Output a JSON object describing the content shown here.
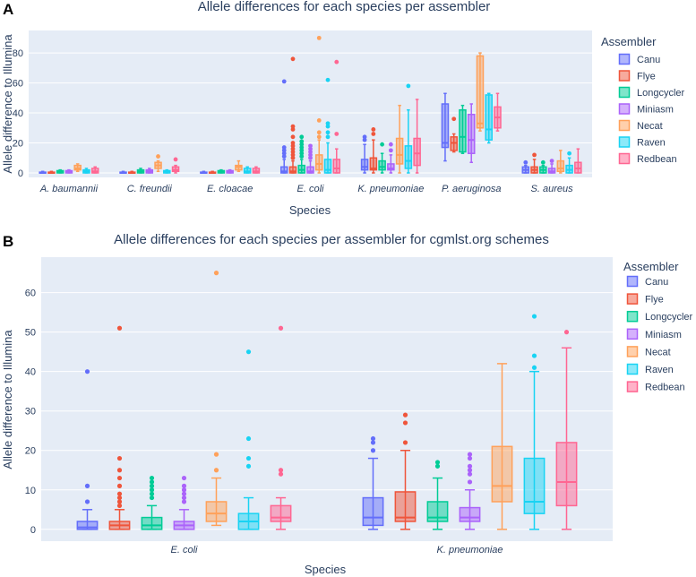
{
  "colors": {
    "Canu": "#636efa",
    "Flye": "#ef553b",
    "Longcycler": "#00cc96",
    "Miniasm": "#ab63fa",
    "Necat": "#ffa15a",
    "Raven": "#19d3f3",
    "Redbean": "#ff6692"
  },
  "chart_data": [
    {
      "panel_label": "A",
      "type": "box",
      "title": "Allele differences for each species per assembler",
      "xlabel": "Species",
      "ylabel": "Allele difference to Illumina",
      "ylim": [
        -3,
        95
      ],
      "yticks": [
        0,
        20,
        40,
        60,
        80
      ],
      "legend_title": "Assembler",
      "legend_position": "right",
      "series_names": [
        "Canu",
        "Flye",
        "Longcycler",
        "Miniasm",
        "Necat",
        "Raven",
        "Redbean"
      ],
      "categories": [
        "A. baumannii",
        "C. freundii",
        "E. cloacae",
        "E. coli",
        "K. pneumoniae",
        "P. aeruginosa",
        "S. aureus"
      ],
      "boxes": [
        [
          {
            "q1": 0,
            "median": 0,
            "q3": 0.5,
            "lo": 0,
            "hi": 1,
            "outliers": []
          },
          {
            "q1": 0,
            "median": 0,
            "q3": 0.5,
            "lo": 0,
            "hi": 1,
            "outliers": []
          },
          {
            "q1": 0,
            "median": 1,
            "q3": 1.5,
            "lo": 0,
            "hi": 2,
            "outliers": []
          },
          {
            "q1": 0,
            "median": 1,
            "q3": 1.5,
            "lo": 0,
            "hi": 2,
            "outliers": []
          },
          {
            "q1": 2,
            "median": 3,
            "q3": 5,
            "lo": 1,
            "hi": 6,
            "outliers": []
          },
          {
            "q1": 0,
            "median": 1,
            "q3": 2,
            "lo": 0,
            "hi": 3,
            "outliers": []
          },
          {
            "q1": 0,
            "median": 1,
            "q3": 3,
            "lo": 0,
            "hi": 4,
            "outliers": []
          }
        ],
        [
          {
            "q1": 0,
            "median": 0,
            "q3": 0.5,
            "lo": 0,
            "hi": 1,
            "outliers": []
          },
          {
            "q1": 0,
            "median": 0,
            "q3": 0.5,
            "lo": 0,
            "hi": 1,
            "outliers": []
          },
          {
            "q1": 0,
            "median": 1,
            "q3": 2,
            "lo": 0,
            "hi": 3,
            "outliers": []
          },
          {
            "q1": 0,
            "median": 1,
            "q3": 2,
            "lo": 0,
            "hi": 3,
            "outliers": []
          },
          {
            "q1": 3,
            "median": 5,
            "q3": 7,
            "lo": 1,
            "hi": 8,
            "outliers": [
              11
            ]
          },
          {
            "q1": 0,
            "median": 1,
            "q3": 1.5,
            "lo": 0,
            "hi": 2,
            "outliers": []
          },
          {
            "q1": 1,
            "median": 2,
            "q3": 4,
            "lo": 0,
            "hi": 5,
            "outliers": [
              9
            ]
          }
        ],
        [
          {
            "q1": 0,
            "median": 0,
            "q3": 0.5,
            "lo": 0,
            "hi": 1,
            "outliers": []
          },
          {
            "q1": 0,
            "median": 0,
            "q3": 0.5,
            "lo": 0,
            "hi": 1,
            "outliers": []
          },
          {
            "q1": 0,
            "median": 1,
            "q3": 1.5,
            "lo": 0,
            "hi": 2,
            "outliers": []
          },
          {
            "q1": 0,
            "median": 1,
            "q3": 1.5,
            "lo": 0,
            "hi": 2,
            "outliers": []
          },
          {
            "q1": 2,
            "median": 4,
            "q3": 5,
            "lo": 1,
            "hi": 8,
            "outliers": []
          },
          {
            "q1": 0,
            "median": 1,
            "q3": 3,
            "lo": 0,
            "hi": 4,
            "outliers": []
          },
          {
            "q1": 0,
            "median": 1,
            "q3": 3,
            "lo": 0,
            "hi": 4,
            "outliers": []
          }
        ],
        [
          {
            "q1": 0,
            "median": 1,
            "q3": 4,
            "lo": 0,
            "hi": 9,
            "outliers": [
              11,
              13,
              15,
              17,
              61
            ]
          },
          {
            "q1": 0,
            "median": 1,
            "q3": 4,
            "lo": 0,
            "hi": 8,
            "outliers": [
              10,
              12,
              14,
              16,
              18,
              20,
              24,
              29,
              31,
              76
            ]
          },
          {
            "q1": 0,
            "median": 2,
            "q3": 5,
            "lo": 0,
            "hi": 9,
            "outliers": [
              11,
              13,
              15,
              17,
              19,
              21,
              24
            ]
          },
          {
            "q1": 0,
            "median": 1,
            "q3": 4,
            "lo": 0,
            "hi": 8,
            "outliers": [
              10,
              12,
              14,
              16,
              18
            ]
          },
          {
            "q1": 2,
            "median": 6,
            "q3": 12,
            "lo": 0,
            "hi": 22,
            "outliers": [
              24,
              27,
              35,
              90
            ]
          },
          {
            "q1": 0,
            "median": 2,
            "q3": 9,
            "lo": 0,
            "hi": 20,
            "outliers": [
              24,
              27,
              31,
              33,
              62
            ]
          },
          {
            "q1": 0,
            "median": 3,
            "q3": 9,
            "lo": 0,
            "hi": 16,
            "outliers": [
              26,
              74
            ]
          }
        ],
        [
          {
            "q1": 2,
            "median": 4,
            "q3": 9,
            "lo": 0,
            "hi": 19,
            "outliers": [
              22,
              24
            ]
          },
          {
            "q1": 2,
            "median": 3,
            "q3": 10,
            "lo": 0,
            "hi": 22,
            "outliers": [
              26,
              29
            ]
          },
          {
            "q1": 2,
            "median": 4,
            "q3": 8,
            "lo": 0,
            "hi": 13,
            "outliers": [
              19
            ]
          },
          {
            "q1": 2,
            "median": 3,
            "q3": 6,
            "lo": 0,
            "hi": 12,
            "outliers": [
              15,
              19
            ]
          },
          {
            "q1": 6,
            "median": 12,
            "q3": 23,
            "lo": 0,
            "hi": 45,
            "outliers": []
          },
          {
            "q1": 3,
            "median": 8,
            "q3": 18,
            "lo": 0,
            "hi": 42,
            "outliers": [
              58
            ]
          },
          {
            "q1": 5,
            "median": 13,
            "q3": 23,
            "lo": 0,
            "hi": 49,
            "outliers": []
          }
        ],
        [
          {
            "q1": 17,
            "median": 20,
            "q3": 46,
            "lo": 8,
            "hi": 53,
            "outliers": []
          },
          {
            "q1": 15,
            "median": 20,
            "q3": 24,
            "lo": 14,
            "hi": 26,
            "outliers": [
              36
            ]
          },
          {
            "q1": 14,
            "median": 24,
            "q3": 42,
            "lo": 13,
            "hi": 45,
            "outliers": []
          },
          {
            "q1": 13,
            "median": 22,
            "q3": 39,
            "lo": 7,
            "hi": 46,
            "outliers": []
          },
          {
            "q1": 30,
            "median": 33,
            "q3": 78,
            "lo": 28,
            "hi": 80,
            "outliers": []
          },
          {
            "q1": 22,
            "median": 29,
            "q3": 52,
            "lo": 20,
            "hi": 53,
            "outliers": []
          },
          {
            "q1": 30,
            "median": 37,
            "q3": 44,
            "lo": 28,
            "hi": 53,
            "outliers": []
          }
        ],
        [
          {
            "q1": 0,
            "median": 2,
            "q3": 4,
            "lo": 0,
            "hi": 5,
            "outliers": [
              7
            ]
          },
          {
            "q1": 0,
            "median": 2,
            "q3": 4,
            "lo": 0,
            "hi": 9,
            "outliers": [
              12
            ]
          },
          {
            "q1": 0,
            "median": 2,
            "q3": 4,
            "lo": 0,
            "hi": 5,
            "outliers": [
              7
            ]
          },
          {
            "q1": 0,
            "median": 1,
            "q3": 3,
            "lo": 0,
            "hi": 6,
            "outliers": [
              8
            ]
          },
          {
            "q1": 1,
            "median": 3,
            "q3": 8,
            "lo": 0,
            "hi": 15,
            "outliers": []
          },
          {
            "q1": 0,
            "median": 2,
            "q3": 5,
            "lo": 0,
            "hi": 10,
            "outliers": [
              13
            ]
          },
          {
            "q1": 0,
            "median": 3,
            "q3": 7,
            "lo": 0,
            "hi": 16,
            "outliers": []
          }
        ]
      ]
    },
    {
      "panel_label": "B",
      "type": "box",
      "title": "Allele differences for each species per assembler for cgmlst.org schemes",
      "xlabel": "Species",
      "ylabel": "Allele difference to Illumina",
      "ylim": [
        -3,
        69
      ],
      "yticks": [
        0,
        10,
        20,
        30,
        40,
        50,
        60
      ],
      "legend_title": "Assembler",
      "legend_position": "right",
      "series_names": [
        "Canu",
        "Flye",
        "Longcycler",
        "Miniasm",
        "Necat",
        "Raven",
        "Redbean"
      ],
      "categories": [
        "E. coli",
        "K. pneumoniae"
      ],
      "boxes": [
        [
          {
            "q1": 0,
            "median": 0.5,
            "q3": 2,
            "lo": 0,
            "hi": 5,
            "outliers": [
              7,
              11,
              40
            ]
          },
          {
            "q1": 0,
            "median": 1,
            "q3": 2,
            "lo": 0,
            "hi": 5,
            "outliers": [
              6,
              7,
              8,
              9,
              11,
              13,
              15,
              18,
              51
            ]
          },
          {
            "q1": 0,
            "median": 1,
            "q3": 3,
            "lo": 0,
            "hi": 6,
            "outliers": [
              8,
              9,
              10,
              11,
              12,
              13
            ]
          },
          {
            "q1": 0,
            "median": 1,
            "q3": 2,
            "lo": 0,
            "hi": 5,
            "outliers": [
              7,
              8,
              9,
              10,
              11,
              13
            ]
          },
          {
            "q1": 2,
            "median": 4,
            "q3": 7,
            "lo": 1,
            "hi": 13,
            "outliers": [
              15,
              19,
              65
            ]
          },
          {
            "q1": 0,
            "median": 2,
            "q3": 4,
            "lo": 0,
            "hi": 8,
            "outliers": [
              16,
              18,
              23,
              45
            ]
          },
          {
            "q1": 2,
            "median": 3,
            "q3": 6,
            "lo": 0,
            "hi": 8,
            "outliers": [
              14,
              15,
              51
            ]
          }
        ],
        [
          {
            "q1": 1,
            "median": 3,
            "q3": 8,
            "lo": 0,
            "hi": 18,
            "outliers": [
              20,
              22,
              23
            ]
          },
          {
            "q1": 2,
            "median": 3,
            "q3": 9.5,
            "lo": 0,
            "hi": 20,
            "outliers": [
              22,
              27,
              29
            ]
          },
          {
            "q1": 2,
            "median": 3,
            "q3": 7,
            "lo": 0,
            "hi": 13,
            "outliers": [
              16,
              17
            ]
          },
          {
            "q1": 2,
            "median": 3,
            "q3": 5.5,
            "lo": 0,
            "hi": 10,
            "outliers": [
              12,
              14,
              15,
              16,
              18,
              19
            ]
          },
          {
            "q1": 7,
            "median": 11,
            "q3": 21,
            "lo": 0,
            "hi": 42,
            "outliers": []
          },
          {
            "q1": 4,
            "median": 7,
            "q3": 18,
            "lo": 0,
            "hi": 40,
            "outliers": [
              41,
              44,
              54
            ]
          },
          {
            "q1": 6,
            "median": 12,
            "q3": 22,
            "lo": 0,
            "hi": 46,
            "outliers": [
              50
            ]
          }
        ]
      ]
    }
  ]
}
